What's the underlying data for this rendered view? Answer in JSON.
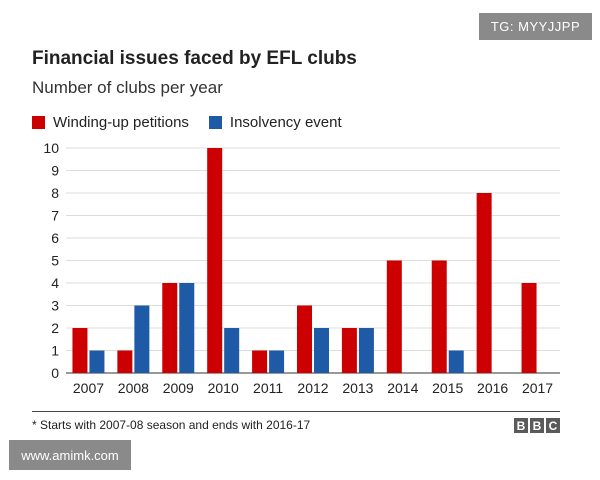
{
  "watermarks": {
    "top_right": "TG: MYYJJPP",
    "bottom_left": "www.amimk.com"
  },
  "footnote": "* Starts with 2007-08 season and ends with 2016-17",
  "logo": {
    "letters": [
      "B",
      "B",
      "C"
    ]
  },
  "colors": {
    "winding": "#cc0000",
    "insolvency": "#1f5aa6",
    "grid": "#dddddd",
    "axis": "#333333"
  },
  "chart_data": {
    "type": "bar",
    "title": "Financial issues faced by EFL clubs",
    "subtitle": "Number of clubs per year",
    "categories": [
      "2007",
      "2008",
      "2009",
      "2010",
      "2011",
      "2012",
      "2013",
      "2014",
      "2015",
      "2016",
      "2017"
    ],
    "series": [
      {
        "name": "Winding-up petitions",
        "values": [
          2,
          1,
          4,
          10,
          1,
          3,
          2,
          5,
          5,
          8,
          4
        ]
      },
      {
        "name": "Insolvency event",
        "values": [
          1,
          3,
          4,
          2,
          1,
          2,
          2,
          0,
          1,
          0,
          0
        ]
      }
    ],
    "ylim": [
      0,
      10
    ],
    "yticks": [
      "0",
      "1",
      "2",
      "3",
      "4",
      "5",
      "6",
      "7",
      "8",
      "9",
      "10"
    ],
    "grid": true,
    "legend_position": "top-left"
  }
}
